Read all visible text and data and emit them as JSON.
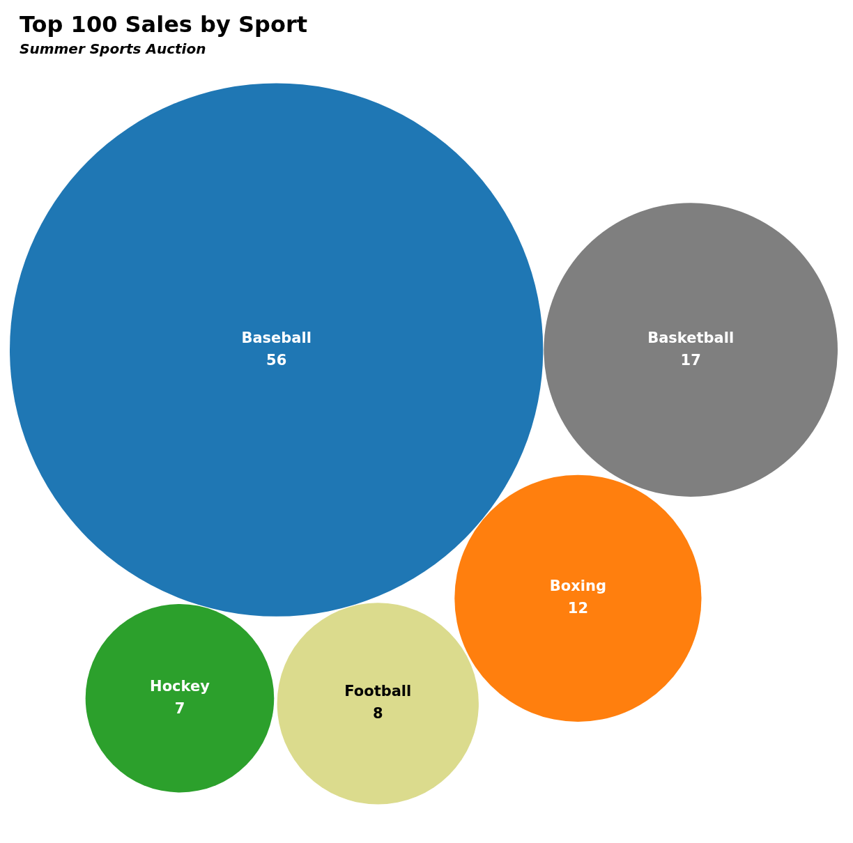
{
  "chart_data": {
    "type": "other",
    "title": "Top 100 Sales by Sport",
    "subtitle": "Summer Sports Auction",
    "categories": [
      "Baseball",
      "Basketball",
      "Boxing",
      "Football",
      "Hockey"
    ],
    "values": [
      56,
      17,
      12,
      8,
      7
    ],
    "colors": [
      "#1f77b4",
      "#7f7f7f",
      "#ff7f0e",
      "#dbdb8d",
      "#2ca02c"
    ],
    "data_labels": true
  }
}
